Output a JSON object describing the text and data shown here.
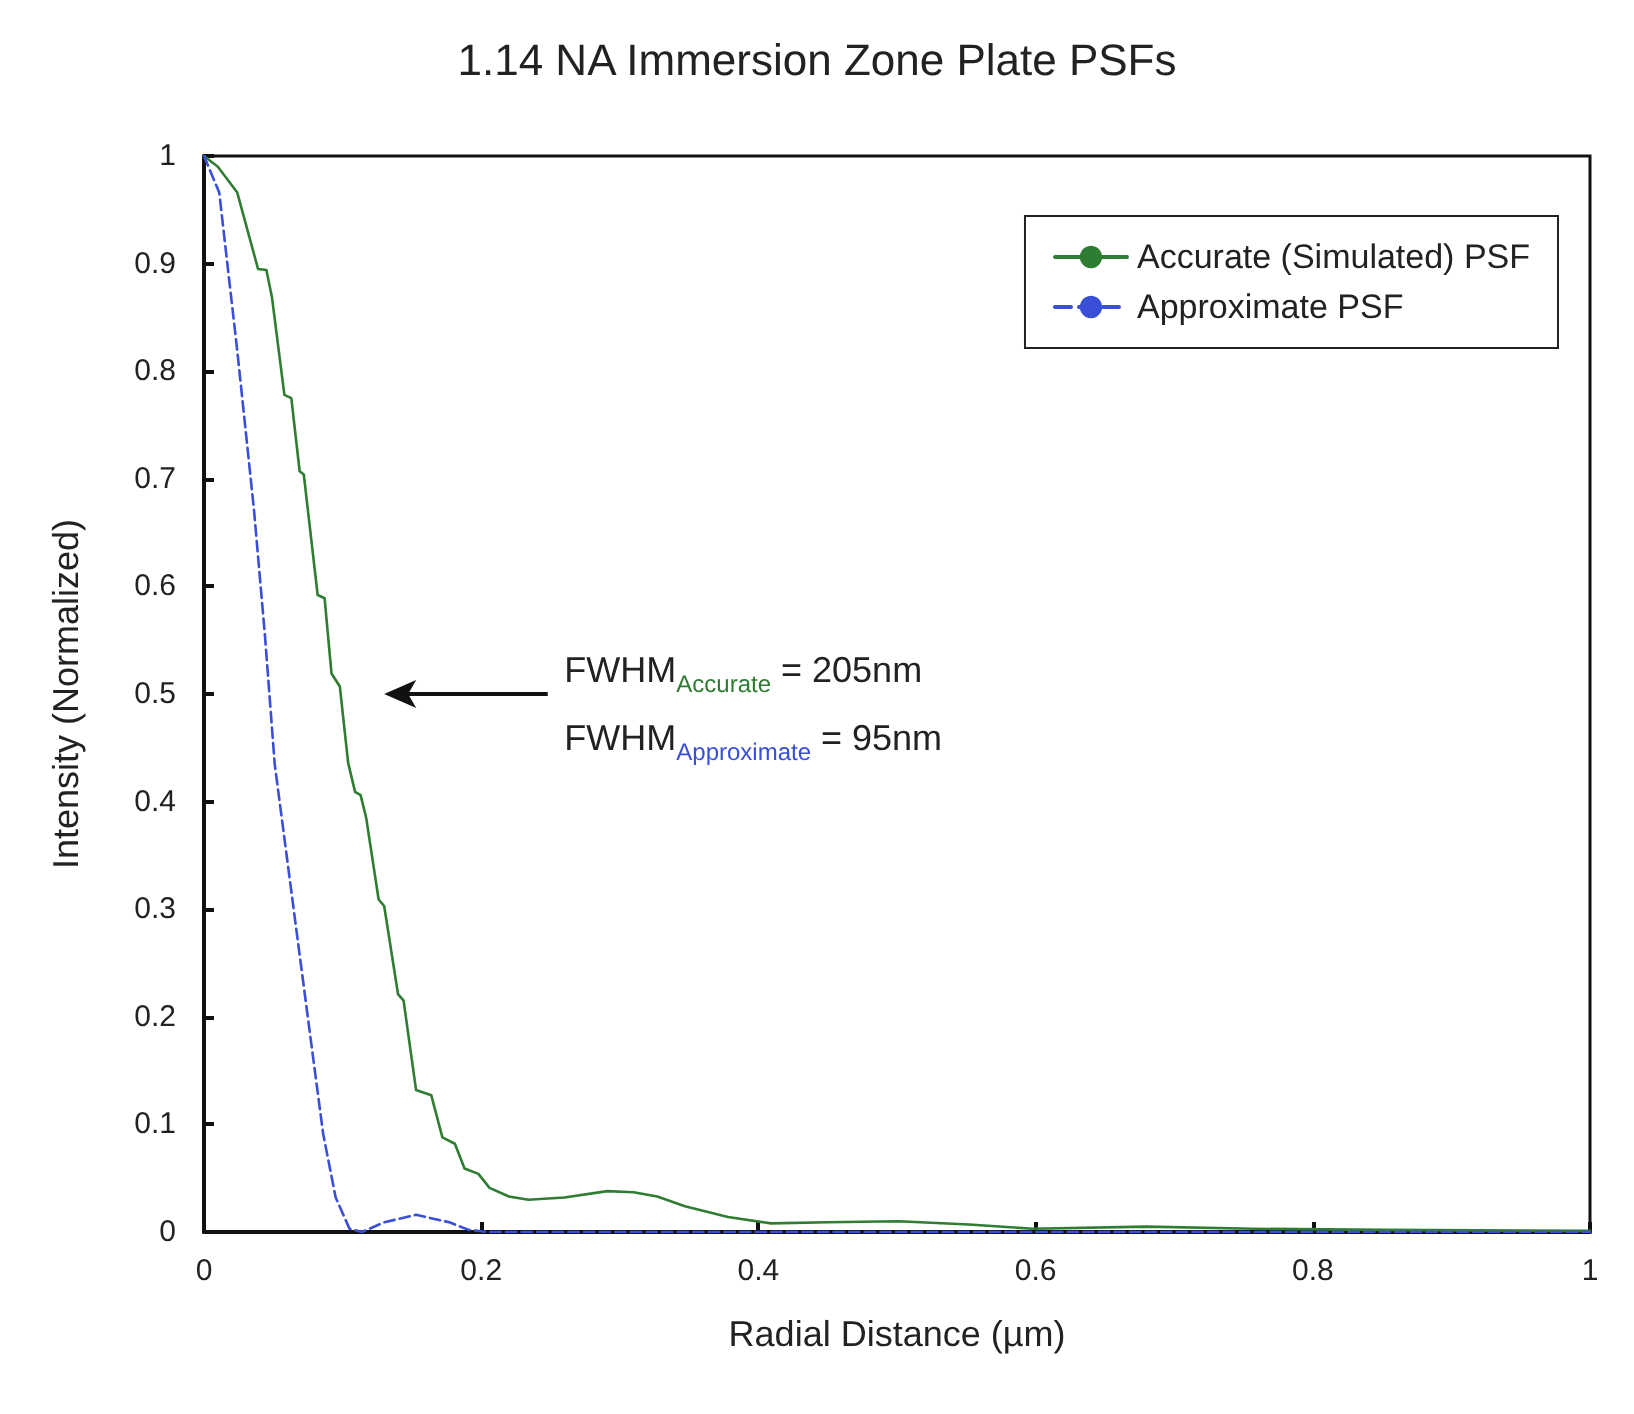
{
  "chart_data": {
    "type": "line",
    "title": "1.14 NA Immersion Zone Plate PSFs",
    "xlabel": "Radial Distance (µm)",
    "ylabel": "Intensity (Normalized)",
    "xlim": [
      0,
      1
    ],
    "xticks": [
      0,
      0.2,
      0.4,
      0.6,
      0.8,
      1
    ],
    "ylim": [
      0,
      1
    ],
    "yticks": [
      0,
      0.1,
      0.2,
      0.3,
      0.4,
      0.5,
      0.6,
      0.7,
      0.8,
      0.9,
      1
    ],
    "grid": false,
    "legend": "top right",
    "marker": "none",
    "annotations": [
      "FWHM$_{Accurate}$ = 205nm",
      "FWHM$_{Approximate}$ = 95nm"
    ],
    "series": [
      {
        "name": "Accurate (Simulated) PSF",
        "color": "#2e7d32",
        "line_style": "solid",
        "x": [
          0,
          0.01,
          0.024,
          0.039,
          0.045,
          0.049,
          0.058,
          0.063,
          0.069,
          0.072,
          0.082,
          0.087,
          0.092,
          0.098,
          0.104,
          0.109,
          0.113,
          0.117,
          0.126,
          0.13,
          0.14,
          0.144,
          0.153,
          0.164,
          0.172,
          0.181,
          0.188,
          0.198,
          0.206,
          0.22,
          0.234,
          0.26,
          0.291,
          0.31,
          0.327,
          0.347,
          0.378,
          0.409,
          0.45,
          0.501,
          0.552,
          0.598,
          0.68,
          0.757,
          0.85,
          1
        ],
        "values": [
          1,
          0.99,
          0.966,
          0.895,
          0.894,
          0.869,
          0.778,
          0.775,
          0.707,
          0.704,
          0.592,
          0.589,
          0.519,
          0.507,
          0.436,
          0.409,
          0.406,
          0.385,
          0.309,
          0.303,
          0.221,
          0.215,
          0.132,
          0.127,
          0.088,
          0.082,
          0.059,
          0.054,
          0.041,
          0.033,
          0.03,
          0.032,
          0.038,
          0.037,
          0.033,
          0.024,
          0.014,
          0.008,
          0.009,
          0.01,
          0.007,
          0.003,
          0.005,
          0.003,
          0.002,
          0.001
        ]
      },
      {
        "name": "Approximate PSF",
        "color": "#3a4fd8",
        "line_style": "dashed",
        "x": [
          0,
          0.011,
          0.024,
          0.036,
          0.044,
          0.051,
          0.065,
          0.077,
          0.086,
          0.095,
          0.105,
          0.114,
          0.13,
          0.153,
          0.177,
          0.191,
          0.205,
          0.3,
          0.5,
          0.7,
          1
        ],
        "values": [
          1,
          0.966,
          0.819,
          0.672,
          0.554,
          0.435,
          0.297,
          0.179,
          0.091,
          0.032,
          0.003,
          0,
          0.009,
          0.016,
          0.009,
          0.002,
          0,
          0,
          0,
          0,
          0
        ]
      }
    ]
  }
}
